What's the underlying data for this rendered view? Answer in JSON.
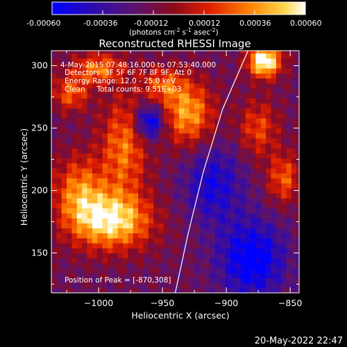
{
  "colorbar": {
    "ticks": [
      "-0.00060",
      "-0.00036",
      "-0.00012",
      "0.00012",
      "0.00036",
      "0.00060"
    ],
    "unit_label": "(photons cm",
    "unit_exp1": "-2",
    "unit_mid": " s",
    "unit_exp2": "-1",
    "unit_tail": " asec",
    "unit_exp3": "-2",
    "unit_close": ")"
  },
  "chart_data": {
    "type": "heatmap",
    "title": "Reconstructed RHESSI Image",
    "xlabel": "Heliocentric X (arcsec)",
    "ylabel": "Heliocentric Y (arcsec)",
    "xlim": [
      -1037,
      -843
    ],
    "ylim": [
      118,
      312
    ],
    "x_ticks": [
      -1000,
      -950,
      -900,
      -850
    ],
    "x_tick_labels": [
      "−1000",
      "−950",
      "−900",
      "−850"
    ],
    "y_ticks": [
      150,
      200,
      250,
      300
    ],
    "y_tick_labels": [
      "150",
      "200",
      "250",
      "300"
    ],
    "colorbar_range": [
      -0.0006,
      0.0006
    ],
    "annotations": [
      "4-May-2015 07:48:16.000 to 07:53:40.000",
      "Detectors: 3F 5F 6F 7F 8F 9F, Att 0",
      "Energy Range: 12.0 - 25.0 keV",
      "Clean     Total counts: 9.51E+03"
    ],
    "peak_label": "Position of Peak = [-870,308]",
    "peak": [
      -870,
      308
    ],
    "limb_points": [
      [
        -940,
        118
      ],
      [
        -930,
        165
      ],
      [
        -918,
        215
      ],
      [
        -903,
        265
      ],
      [
        -883,
        312
      ]
    ],
    "sources": [
      {
        "x": -990,
        "y": 176,
        "sx": 22,
        "sy": 16,
        "amp": 0.0007
      },
      {
        "x": -1015,
        "y": 200,
        "sx": 14,
        "sy": 20,
        "amp": 0.00045
      },
      {
        "x": -980,
        "y": 235,
        "sx": 13,
        "sy": 28,
        "amp": 0.00045
      },
      {
        "x": -1022,
        "y": 278,
        "sx": 10,
        "sy": 10,
        "amp": 0.0004
      },
      {
        "x": -1000,
        "y": 298,
        "sx": 14,
        "sy": 9,
        "amp": 0.00045
      },
      {
        "x": -930,
        "y": 262,
        "sx": 14,
        "sy": 18,
        "amp": 0.00055
      },
      {
        "x": -950,
        "y": 285,
        "sx": 12,
        "sy": 10,
        "amp": 0.00035
      },
      {
        "x": -870,
        "y": 304,
        "sx": 9,
        "sy": 9,
        "amp": 0.00085
      },
      {
        "x": -875,
        "y": 250,
        "sx": 11,
        "sy": 16,
        "amp": 0.00035
      },
      {
        "x": -855,
        "y": 210,
        "sx": 9,
        "sy": 14,
        "amp": 0.0004
      },
      {
        "x": -960,
        "y": 255,
        "sx": 8,
        "sy": 10,
        "amp": -0.00055
      },
      {
        "x": -910,
        "y": 205,
        "sx": 16,
        "sy": 22,
        "amp": -0.00035
      },
      {
        "x": -880,
        "y": 145,
        "sx": 18,
        "sy": 22,
        "amp": -0.0005
      }
    ],
    "background_level": -0.00015
  },
  "footer": {
    "date": "20-May-2022 22:47"
  }
}
